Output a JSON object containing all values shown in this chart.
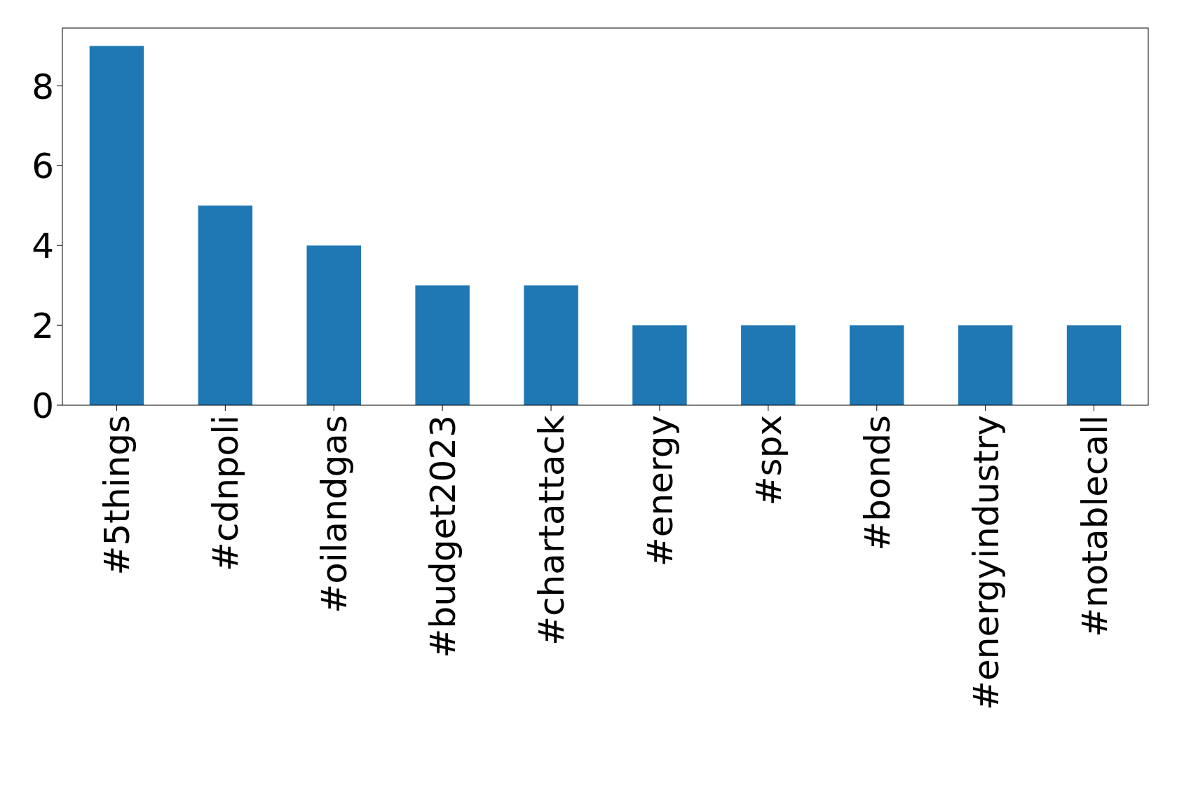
{
  "chart_data": {
    "type": "bar",
    "categories": [
      "#5things",
      "#cdnpoli",
      "#oilandgas",
      "#budget2023",
      "#chartattack",
      "#energy",
      "#spx",
      "#bonds",
      "#energyindustry",
      "#notablecall"
    ],
    "values": [
      9,
      5,
      4,
      3,
      3,
      2,
      2,
      2,
      2,
      2
    ],
    "color": "#1f77b4",
    "ylim": [
      0,
      9.45
    ],
    "yticks": [
      0,
      2,
      4,
      6,
      8
    ]
  }
}
